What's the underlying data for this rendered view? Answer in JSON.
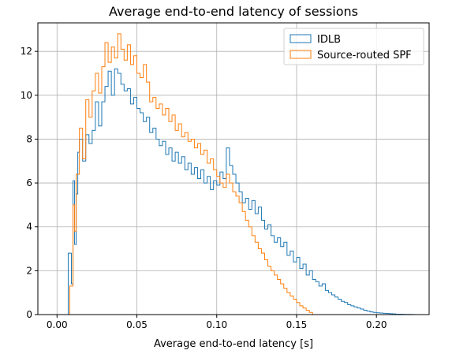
{
  "chart_data": {
    "type": "histogram",
    "title": "Average end-to-end latency of sessions",
    "xlabel": "Average end-to-end latency [s]",
    "ylabel": "",
    "xlim": [
      -0.012,
      0.233
    ],
    "ylim": [
      0,
      13.3
    ],
    "grid": true,
    "legend": "top-right",
    "xticks": [
      0.0,
      0.05,
      0.1,
      0.15,
      0.2
    ],
    "xtick_labels": [
      "0.00",
      "0.05",
      "0.10",
      "0.15",
      "0.20"
    ],
    "yticks": [
      0,
      2,
      4,
      6,
      8,
      10,
      12
    ],
    "ytick_labels": [
      "0",
      "2",
      "4",
      "6",
      "8",
      "10",
      "12"
    ],
    "series": [
      {
        "name": "IDLB",
        "color": "#1f77b4",
        "points": [
          [
            0.005,
            0
          ],
          [
            0.007,
            2.8
          ],
          [
            0.009,
            1.4
          ],
          [
            0.01,
            6.1
          ],
          [
            0.011,
            3.2
          ],
          [
            0.012,
            5.5
          ],
          [
            0.013,
            7.4
          ],
          [
            0.014,
            8.0
          ],
          [
            0.016,
            7.0
          ],
          [
            0.018,
            8.2
          ],
          [
            0.02,
            7.8
          ],
          [
            0.022,
            8.4
          ],
          [
            0.024,
            9.7
          ],
          [
            0.026,
            8.6
          ],
          [
            0.028,
            9.7
          ],
          [
            0.03,
            10.4
          ],
          [
            0.032,
            11.1
          ],
          [
            0.034,
            10.0
          ],
          [
            0.036,
            11.2
          ],
          [
            0.038,
            11.0
          ],
          [
            0.04,
            10.5
          ],
          [
            0.042,
            10.2
          ],
          [
            0.044,
            10.3
          ],
          [
            0.046,
            9.6
          ],
          [
            0.048,
            9.9
          ],
          [
            0.05,
            9.4
          ],
          [
            0.052,
            9.2
          ],
          [
            0.054,
            8.8
          ],
          [
            0.056,
            9.0
          ],
          [
            0.058,
            8.3
          ],
          [
            0.06,
            8.5
          ],
          [
            0.062,
            8.0
          ],
          [
            0.064,
            7.7
          ],
          [
            0.066,
            7.9
          ],
          [
            0.068,
            7.3
          ],
          [
            0.07,
            7.6
          ],
          [
            0.072,
            7.0
          ],
          [
            0.074,
            7.4
          ],
          [
            0.076,
            6.9
          ],
          [
            0.078,
            7.2
          ],
          [
            0.08,
            6.6
          ],
          [
            0.082,
            6.9
          ],
          [
            0.084,
            6.4
          ],
          [
            0.086,
            6.7
          ],
          [
            0.088,
            6.2
          ],
          [
            0.09,
            6.6
          ],
          [
            0.092,
            6.0
          ],
          [
            0.094,
            6.3
          ],
          [
            0.096,
            5.7
          ],
          [
            0.098,
            6.1
          ],
          [
            0.1,
            5.9
          ],
          [
            0.102,
            6.5
          ],
          [
            0.104,
            6.2
          ],
          [
            0.106,
            7.6
          ],
          [
            0.108,
            6.8
          ],
          [
            0.11,
            6.4
          ],
          [
            0.112,
            6.0
          ],
          [
            0.114,
            5.6
          ],
          [
            0.116,
            5.1
          ],
          [
            0.118,
            5.3
          ],
          [
            0.12,
            4.8
          ],
          [
            0.122,
            5.2
          ],
          [
            0.124,
            4.6
          ],
          [
            0.126,
            4.9
          ],
          [
            0.128,
            4.3
          ],
          [
            0.13,
            3.9
          ],
          [
            0.132,
            4.1
          ],
          [
            0.134,
            3.6
          ],
          [
            0.136,
            3.3
          ],
          [
            0.138,
            3.5
          ],
          [
            0.14,
            3.1
          ],
          [
            0.142,
            3.3
          ],
          [
            0.144,
            2.7
          ],
          [
            0.146,
            2.9
          ],
          [
            0.148,
            2.4
          ],
          [
            0.15,
            2.6
          ],
          [
            0.152,
            2.1
          ],
          [
            0.154,
            2.3
          ],
          [
            0.156,
            1.8
          ],
          [
            0.158,
            2.0
          ],
          [
            0.16,
            1.6
          ],
          [
            0.162,
            1.5
          ],
          [
            0.164,
            1.3
          ],
          [
            0.166,
            1.4
          ],
          [
            0.168,
            1.1
          ],
          [
            0.17,
            1.0
          ],
          [
            0.172,
            0.9
          ],
          [
            0.174,
            0.8
          ],
          [
            0.176,
            0.7
          ],
          [
            0.178,
            0.6
          ],
          [
            0.18,
            0.55
          ],
          [
            0.182,
            0.45
          ],
          [
            0.184,
            0.4
          ],
          [
            0.186,
            0.35
          ],
          [
            0.188,
            0.3
          ],
          [
            0.19,
            0.25
          ],
          [
            0.192,
            0.2
          ],
          [
            0.194,
            0.16
          ],
          [
            0.196,
            0.12
          ],
          [
            0.198,
            0.1
          ],
          [
            0.2,
            0.08
          ],
          [
            0.202,
            0.07
          ],
          [
            0.204,
            0.06
          ],
          [
            0.206,
            0.05
          ],
          [
            0.208,
            0.04
          ],
          [
            0.21,
            0.03
          ],
          [
            0.212,
            0.02
          ],
          [
            0.214,
            0.02
          ],
          [
            0.216,
            0.015
          ],
          [
            0.218,
            0.01
          ],
          [
            0.22,
            0.008
          ],
          [
            0.222,
            0.005
          ],
          [
            0.224,
            0
          ]
        ]
      },
      {
        "name": "Source-routed SPF",
        "color": "#ff7f0e",
        "points": [
          [
            0.006,
            0
          ],
          [
            0.008,
            1.3
          ],
          [
            0.01,
            5.0
          ],
          [
            0.011,
            3.8
          ],
          [
            0.012,
            6.4
          ],
          [
            0.014,
            8.5
          ],
          [
            0.016,
            7.1
          ],
          [
            0.018,
            9.8
          ],
          [
            0.02,
            9.0
          ],
          [
            0.022,
            10.2
          ],
          [
            0.024,
            11.0
          ],
          [
            0.026,
            10.1
          ],
          [
            0.028,
            11.3
          ],
          [
            0.03,
            12.4
          ],
          [
            0.032,
            11.5
          ],
          [
            0.034,
            12.2
          ],
          [
            0.036,
            11.7
          ],
          [
            0.038,
            12.8
          ],
          [
            0.04,
            12.1
          ],
          [
            0.042,
            11.6
          ],
          [
            0.044,
            12.3
          ],
          [
            0.046,
            11.4
          ],
          [
            0.048,
            11.8
          ],
          [
            0.05,
            11.0
          ],
          [
            0.052,
            10.8
          ],
          [
            0.054,
            11.4
          ],
          [
            0.056,
            10.6
          ],
          [
            0.058,
            9.7
          ],
          [
            0.06,
            9.9
          ],
          [
            0.062,
            9.4
          ],
          [
            0.064,
            9.6
          ],
          [
            0.066,
            9.1
          ],
          [
            0.068,
            9.4
          ],
          [
            0.07,
            8.8
          ],
          [
            0.072,
            9.1
          ],
          [
            0.074,
            8.4
          ],
          [
            0.076,
            8.7
          ],
          [
            0.078,
            8.1
          ],
          [
            0.08,
            8.3
          ],
          [
            0.082,
            7.9
          ],
          [
            0.084,
            8.0
          ],
          [
            0.086,
            7.6
          ],
          [
            0.088,
            7.8
          ],
          [
            0.09,
            7.3
          ],
          [
            0.092,
            7.5
          ],
          [
            0.094,
            6.9
          ],
          [
            0.096,
            7.1
          ],
          [
            0.098,
            6.6
          ],
          [
            0.1,
            6.3
          ],
          [
            0.102,
            6.0
          ],
          [
            0.104,
            5.8
          ],
          [
            0.106,
            6.4
          ],
          [
            0.108,
            6.0
          ],
          [
            0.11,
            5.6
          ],
          [
            0.112,
            5.4
          ],
          [
            0.114,
            5.1
          ],
          [
            0.116,
            4.7
          ],
          [
            0.118,
            4.3
          ],
          [
            0.12,
            4.0
          ],
          [
            0.122,
            3.6
          ],
          [
            0.124,
            3.3
          ],
          [
            0.126,
            3.0
          ],
          [
            0.128,
            2.8
          ],
          [
            0.13,
            2.5
          ],
          [
            0.132,
            2.2
          ],
          [
            0.134,
            2.0
          ],
          [
            0.136,
            1.8
          ],
          [
            0.138,
            1.6
          ],
          [
            0.14,
            1.4
          ],
          [
            0.142,
            1.2
          ],
          [
            0.144,
            1.0
          ],
          [
            0.146,
            0.85
          ],
          [
            0.148,
            0.7
          ],
          [
            0.15,
            0.55
          ],
          [
            0.152,
            0.4
          ],
          [
            0.154,
            0.3
          ],
          [
            0.156,
            0.2
          ],
          [
            0.158,
            0.1
          ],
          [
            0.16,
            0
          ]
        ]
      }
    ]
  }
}
